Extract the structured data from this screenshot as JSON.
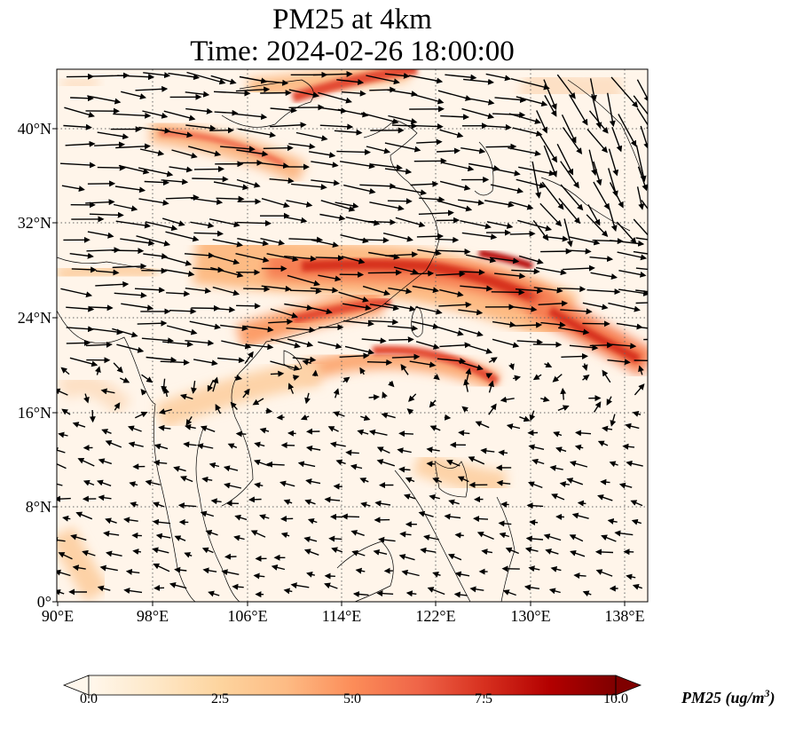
{
  "title": {
    "line1": "PM25 at 4km",
    "line2": "Time: 2024-02-26 18:00:00"
  },
  "map": {
    "lon_range": [
      90,
      139.5
    ],
    "lat_range": [
      0,
      45
    ],
    "x_ticks": [
      "90°E",
      "98°E",
      "106°E",
      "114°E",
      "122°E",
      "130°E",
      "138°E"
    ],
    "y_ticks": [
      "0°",
      "8°N",
      "16°N",
      "24°N",
      "32°N",
      "40°N"
    ],
    "gridlines": "dotted",
    "field_colormap": "OrRd",
    "vector_field": "wind arrows, predominantly westerly (eastward) north of ~18°N, easterly (westward) south of ~16°N"
  },
  "colorbar": {
    "ticks": [
      "0.0",
      "2.5",
      "5.0",
      "7.5",
      "10.0"
    ],
    "range": [
      0,
      10
    ],
    "extend": "both",
    "label_main": "PM25 (ug/m",
    "label_sup": "3",
    "label_end": ")",
    "colors": [
      "#fff7ec",
      "#fee8c8",
      "#fdd49e",
      "#fdbb84",
      "#fc8d59",
      "#ef6548",
      "#d7301f",
      "#b30000",
      "#7f0000"
    ]
  }
}
